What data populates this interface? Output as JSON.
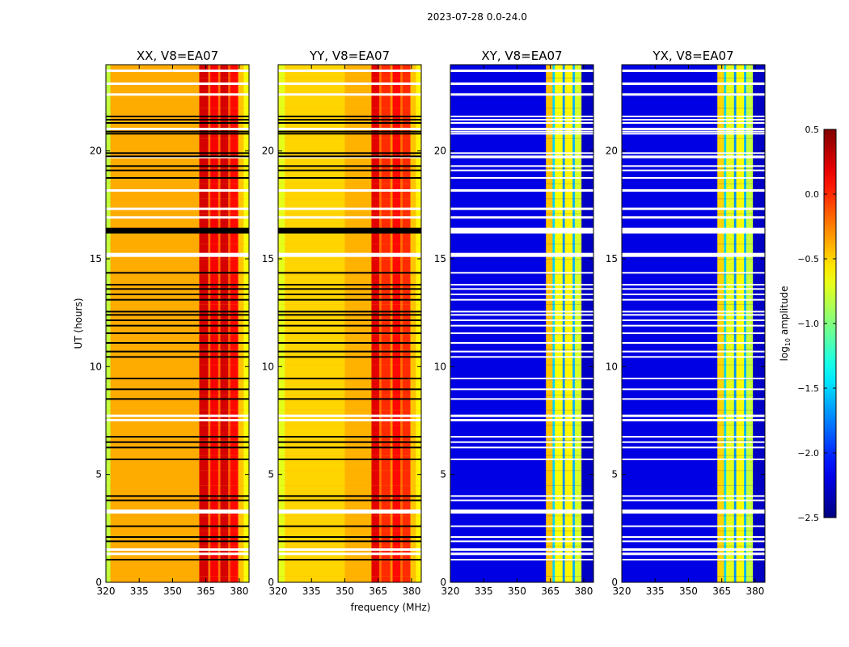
{
  "chart_data": {
    "type": "heatmap",
    "title": "2023-07-28 0.0-24.0",
    "xlabel": "frequency (MHz)",
    "ylabel": "UT (hours)",
    "xlim": [
      320,
      384.4
    ],
    "ylim": [
      0,
      24
    ],
    "xticks": [
      320,
      335,
      350,
      365,
      380
    ],
    "yticks": [
      0,
      5,
      10,
      15,
      20
    ],
    "colorbar": {
      "label_main": "log",
      "label_sub": "10",
      "label_rest": " amplitude",
      "range": [
        -2.5,
        0.5
      ],
      "ticks": [
        "0.5",
        "0.0",
        "−0.5",
        "−1.0",
        "−1.5",
        "−2.0",
        "−2.5"
      ],
      "tick_values": [
        0.5,
        0.0,
        -0.5,
        -1.0,
        -1.5,
        -2.0,
        -2.5
      ],
      "colormap": "jet"
    },
    "flagged_white_hours": [
      23.7,
      23.1,
      22.6,
      21.0,
      19.7,
      18.15,
      17.3,
      16.9,
      15.2,
      7.7,
      7.5,
      3.3,
      1.5,
      1.3
    ],
    "flagged_black_hours": [
      21.6,
      21.45,
      21.3,
      20.9,
      20.8,
      19.9,
      19.75,
      19.3,
      19.1,
      18.75,
      16.4,
      14.35,
      13.8,
      13.6,
      13.35,
      13.1,
      12.55,
      12.4,
      12.15,
      11.9,
      11.55,
      11.1,
      10.7,
      10.45,
      9.45,
      8.95,
      8.5,
      6.75,
      6.5,
      6.25,
      5.7,
      4.0,
      3.8,
      2.6,
      2.1,
      1.9,
      1.05
    ],
    "panels": [
      {
        "title": "XX, V8=EA07",
        "segments": [
          [
            320,
            322,
            -0.8
          ],
          [
            322,
            362,
            -0.38
          ],
          [
            362,
            366,
            0.25
          ],
          [
            366,
            367,
            -0.2
          ],
          [
            367,
            370.5,
            0.15
          ],
          [
            370.5,
            371.5,
            -0.2
          ],
          [
            371.5,
            375,
            0.25
          ],
          [
            375,
            376,
            -0.15
          ],
          [
            376,
            379.5,
            0.1
          ],
          [
            379.5,
            382,
            -0.45
          ],
          [
            382,
            384.4,
            -0.65
          ]
        ]
      },
      {
        "title": "YY, V8=EA07",
        "segments": [
          [
            320,
            323,
            -0.7
          ],
          [
            323,
            350,
            -0.5
          ],
          [
            350,
            362,
            -0.4
          ],
          [
            362,
            365.5,
            0.2
          ],
          [
            365.5,
            366.5,
            -0.2
          ],
          [
            366.5,
            370.5,
            0.0
          ],
          [
            370.5,
            371.5,
            -0.3
          ],
          [
            371.5,
            375,
            0.1
          ],
          [
            375,
            376,
            -0.2
          ],
          [
            376,
            379.5,
            0.0
          ],
          [
            379.5,
            382,
            -0.45
          ],
          [
            382,
            384.4,
            -0.6
          ]
        ]
      },
      {
        "title": "XY, V8=EA07",
        "segments": [
          [
            320,
            363,
            -2.2
          ],
          [
            363,
            366,
            -0.45
          ],
          [
            366,
            367,
            -1.5
          ],
          [
            367,
            370.5,
            -0.65
          ],
          [
            370.5,
            371.5,
            -1.7
          ],
          [
            371.5,
            375,
            -0.6
          ],
          [
            375,
            376,
            -1.6
          ],
          [
            376,
            379,
            -0.75
          ],
          [
            379,
            384.4,
            -2.3
          ]
        ]
      },
      {
        "title": "YX, V8=EA07",
        "segments": [
          [
            320,
            363,
            -2.2
          ],
          [
            363,
            366,
            -0.5
          ],
          [
            366,
            367,
            -1.5
          ],
          [
            367,
            370.5,
            -0.7
          ],
          [
            370.5,
            371.5,
            -1.7
          ],
          [
            371.5,
            375,
            -0.65
          ],
          [
            375,
            376,
            -1.6
          ],
          [
            376,
            379,
            -0.8
          ],
          [
            379,
            384.4,
            -2.3
          ]
        ]
      }
    ]
  }
}
